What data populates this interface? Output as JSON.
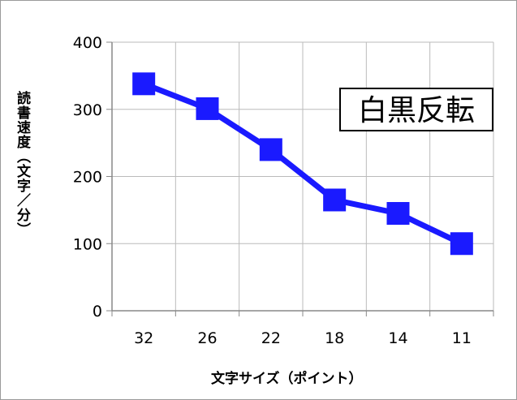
{
  "chart_data": {
    "type": "line",
    "categories": [
      "32",
      "26",
      "22",
      "18",
      "14",
      "11"
    ],
    "series": [
      {
        "values": [
          338,
          301,
          240,
          165,
          145,
          100
        ]
      }
    ],
    "title": "",
    "xlabel": "文字サイズ（ポイント）",
    "ylabel": "読書速度（文字／分）",
    "annotation": "白黒反転",
    "ylim": [
      0,
      400
    ],
    "yticks": [
      0,
      100,
      200,
      300,
      400
    ],
    "grid": true,
    "colors": {
      "series": "#1a1aff",
      "grid": "#bbbbbb",
      "axis": "#888888"
    },
    "marker": "square"
  }
}
